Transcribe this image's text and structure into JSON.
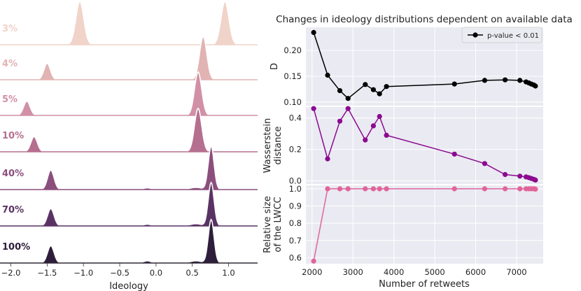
{
  "chart_data": [
    {
      "type": "area",
      "subtype": "ridgeline",
      "title": "",
      "xlabel": "Ideology",
      "xlim": [
        -2.15,
        1.4
      ],
      "xticks": [
        -2.0,
        -1.5,
        -1.0,
        -0.5,
        0.0,
        0.5,
        1.0
      ],
      "xtick_labels": [
        "−2.0",
        "−1.5",
        "−1.0",
        "−0.5",
        "0.0",
        "0.5",
        "1.0"
      ],
      "rows": [
        {
          "label": "3%",
          "color": "#f0d3c9",
          "peaks": [
            {
              "mu": -1.05,
              "sigma": 0.055,
              "h": 1.0
            },
            {
              "mu": 0.95,
              "sigma": 0.055,
              "h": 1.0
            }
          ]
        },
        {
          "label": "4%",
          "color": "#e2b3b3",
          "peaks": [
            {
              "mu": -1.5,
              "sigma": 0.045,
              "h": 0.38
            },
            {
              "mu": 0.65,
              "sigma": 0.05,
              "h": 1.0
            }
          ]
        },
        {
          "label": "5%",
          "color": "#d190a5",
          "peaks": [
            {
              "mu": -1.78,
              "sigma": 0.045,
              "h": 0.33
            },
            {
              "mu": 0.58,
              "sigma": 0.05,
              "h": 1.0
            }
          ]
        },
        {
          "label": "10%",
          "color": "#b5708f",
          "peaks": [
            {
              "mu": -1.68,
              "sigma": 0.045,
              "h": 0.35
            },
            {
              "mu": 0.58,
              "sigma": 0.05,
              "h": 1.0
            }
          ]
        },
        {
          "label": "40%",
          "color": "#8a4f7d",
          "peaks": [
            {
              "mu": -1.45,
              "sigma": 0.045,
              "h": 0.45
            },
            {
              "mu": -0.12,
              "sigma": 0.05,
              "h": 0.04
            },
            {
              "mu": 0.55,
              "sigma": 0.08,
              "h": 0.05
            },
            {
              "mu": 0.76,
              "sigma": 0.04,
              "h": 1.0
            }
          ]
        },
        {
          "label": "70%",
          "color": "#5a3364",
          "peaks": [
            {
              "mu": -1.45,
              "sigma": 0.045,
              "h": 0.4
            },
            {
              "mu": -0.12,
              "sigma": 0.05,
              "h": 0.04
            },
            {
              "mu": 0.55,
              "sigma": 0.08,
              "h": 0.05
            },
            {
              "mu": 0.76,
              "sigma": 0.04,
              "h": 1.0
            }
          ]
        },
        {
          "label": "100%",
          "color": "#2e1e3b",
          "peaks": [
            {
              "mu": -1.45,
              "sigma": 0.045,
              "h": 0.4
            },
            {
              "mu": -0.12,
              "sigma": 0.05,
              "h": 0.05
            },
            {
              "mu": 0.55,
              "sigma": 0.08,
              "h": 0.05
            },
            {
              "mu": 0.76,
              "sigma": 0.04,
              "h": 1.0
            }
          ]
        }
      ]
    },
    {
      "type": "line",
      "title": "Changes in ideology distributions dependent on available data",
      "xlabel": "Number of retweets",
      "xlim": [
        1850,
        7650
      ],
      "xticks": [
        2000,
        3000,
        4000,
        5000,
        6000,
        7000
      ],
      "x": [
        2040,
        2380,
        2680,
        2880,
        3300,
        3500,
        3650,
        3820,
        5480,
        6220,
        6720,
        7080,
        7230,
        7300,
        7360,
        7420,
        7460
      ],
      "legend": {
        "label": "p-value < 0.01",
        "position": "top-right"
      },
      "panels": [
        {
          "name": "D",
          "ylabel": "D",
          "ylim": [
            0.093,
            0.245
          ],
          "yticks": [
            0.1,
            0.15,
            0.2
          ],
          "ytick_labels": [
            "0.10",
            "0.15",
            "0.20"
          ],
          "color": "#000000",
          "values": [
            0.235,
            0.152,
            0.122,
            0.107,
            0.134,
            0.124,
            0.116,
            0.13,
            0.135,
            0.142,
            0.143,
            0.142,
            0.139,
            0.137,
            0.135,
            0.133,
            0.131
          ]
        },
        {
          "name": "Wasserstein distance",
          "ylabel": [
            "Wasserstein",
            "distance"
          ],
          "ylim": [
            -0.02,
            0.47
          ],
          "yticks": [
            0.0,
            0.2,
            0.4
          ],
          "ytick_labels": [
            "0.0",
            "0.2",
            "0.4"
          ],
          "color": "#8b0a8f",
          "values": [
            0.46,
            0.14,
            0.38,
            0.46,
            0.26,
            0.35,
            0.41,
            0.29,
            0.17,
            0.11,
            0.04,
            0.03,
            0.025,
            0.02,
            0.015,
            0.01,
            0.005
          ]
        },
        {
          "name": "Relative size of the LWCC",
          "ylabel": [
            "Relative size",
            "of the LWCC"
          ],
          "ylim": [
            0.565,
            1.02
          ],
          "yticks": [
            0.6,
            0.7,
            0.8,
            0.9,
            1.0
          ],
          "ytick_labels": [
            "0.6",
            "0.7",
            "0.8",
            "0.9",
            "1.0"
          ],
          "color": "#e0649a",
          "values": [
            0.58,
            1.0,
            1.0,
            1.0,
            1.0,
            1.0,
            1.0,
            1.0,
            1.0,
            1.0,
            1.0,
            1.0,
            1.0,
            1.0,
            1.0,
            1.0,
            0.998
          ]
        }
      ]
    }
  ]
}
